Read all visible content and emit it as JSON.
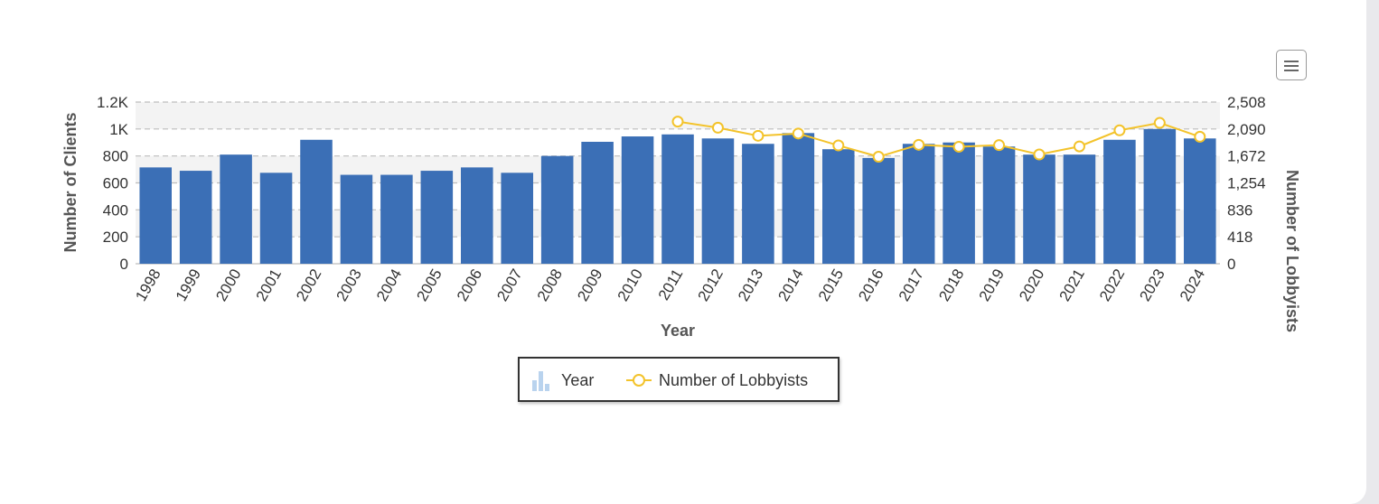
{
  "colors": {
    "bar": "#3b6fb6",
    "line": "#f3c32b",
    "band": "#f3f3f3",
    "grid": "#bdbdbd"
  },
  "menu": {
    "icon": "hamburger-menu-icon"
  },
  "legend": {
    "items": [
      {
        "label": "Year",
        "icon": "bar-chart-icon"
      },
      {
        "label": "Number of Lobbyists",
        "icon": "line-marker-icon"
      }
    ]
  },
  "chart_data": {
    "type": "bar",
    "xlabel": "Year",
    "ylabel": "Number of Clients",
    "y2label": "Number of Lobbyists",
    "ylim": [
      0,
      1200
    ],
    "y2lim": [
      0,
      2508
    ],
    "yticks": [
      "0",
      "200",
      "400",
      "600",
      "800",
      "1K",
      "1.2K"
    ],
    "y2ticks": [
      "0",
      "418",
      "836",
      "1,254",
      "1,672",
      "2,090",
      "2,508"
    ],
    "grid": true,
    "legend_position": "bottom-center",
    "categories": [
      "1998",
      "1999",
      "2000",
      "2001",
      "2002",
      "2003",
      "2004",
      "2005",
      "2006",
      "2007",
      "2008",
      "2009",
      "2010",
      "2011",
      "2012",
      "2013",
      "2014",
      "2015",
      "2016",
      "2017",
      "2018",
      "2019",
      "2020",
      "2021",
      "2022",
      "2023",
      "2024"
    ],
    "series": [
      {
        "name": "Year",
        "type": "bar",
        "axis": "left",
        "values": [
          715,
          690,
          810,
          675,
          920,
          660,
          660,
          690,
          715,
          675,
          800,
          905,
          945,
          960,
          930,
          890,
          970,
          850,
          785,
          890,
          900,
          870,
          810,
          810,
          920,
          1000,
          930
        ]
      },
      {
        "name": "Number of Lobbyists",
        "type": "line",
        "axis": "right",
        "values": [
          null,
          null,
          null,
          null,
          null,
          null,
          null,
          null,
          null,
          null,
          null,
          null,
          null,
          2205,
          2110,
          1985,
          2020,
          1835,
          1660,
          1845,
          1815,
          1840,
          1695,
          1820,
          2070,
          2185,
          1970
        ]
      }
    ]
  }
}
